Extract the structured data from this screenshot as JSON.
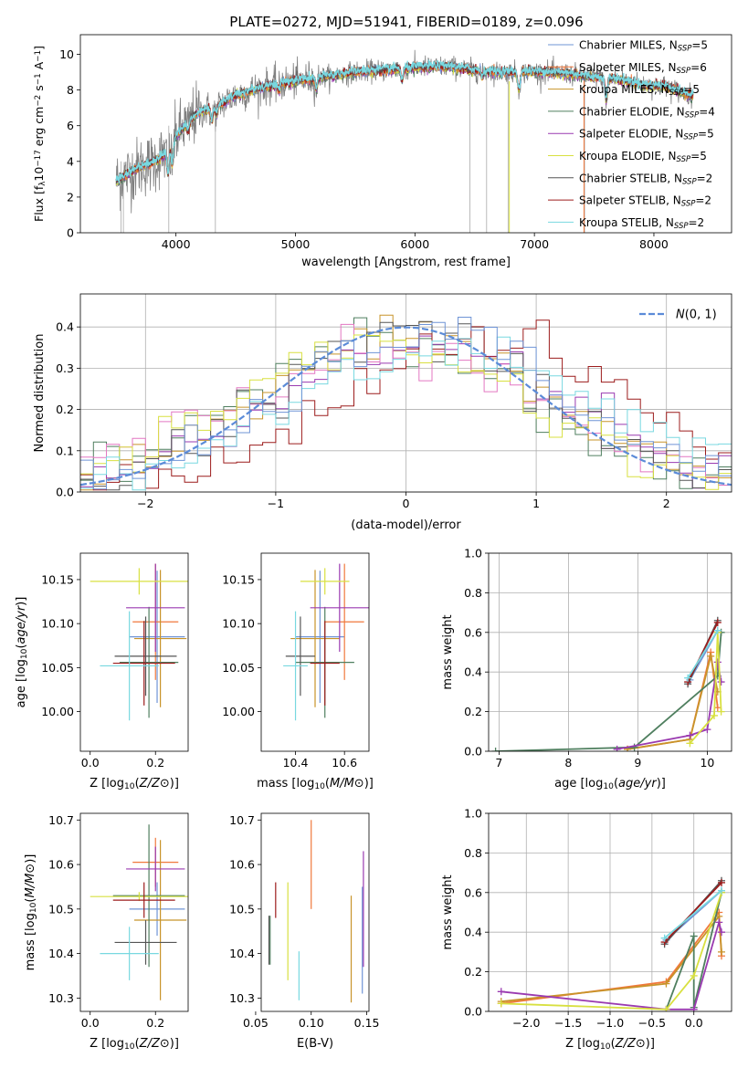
{
  "figure": {
    "title": "PLATE=0272, MJD=51941, FIBERID=0189, z=0.096"
  },
  "colors": {
    "Chabrier MILES": "#6f94d6",
    "Salpeter MILES": "#f0783c",
    "Kroupa MILES": "#c8942a",
    "Chabrier ELODIE": "#4f7f5f",
    "Salpeter ELODIE": "#9a3ab0",
    "Kroupa ELODIE": "#d8e040",
    "Chabrier STELIB": "#555555",
    "Salpeter STELIB": "#9c1c1c",
    "Kroupa STELIB": "#78d8e0",
    "gauss": "#5b8bd8",
    "spectrum": "#808080",
    "pink": "#e377c2",
    "orange": "#d6782c"
  },
  "chart_data": [
    {
      "id": "spectrum",
      "type": "line",
      "xlabel": "wavelength [Angstrom, rest frame]",
      "ylabel_parts": [
        "Flux [f",
        "λ",
        "10",
        "−17",
        " erg cm",
        "−2",
        " s",
        "−1",
        " A",
        "−1",
        "]"
      ],
      "xlim": [
        3200,
        8650
      ],
      "ylim": [
        0,
        11.1
      ],
      "xticks": [
        4000,
        5000,
        6000,
        7000,
        8000
      ],
      "yticks": [
        0,
        2,
        4,
        6,
        8,
        10
      ],
      "legend": [
        "Chabrier MILES, N_SSP=5",
        "Salpeter MILES, N_SSP=6",
        "Kroupa MILES, N_SSP=5",
        "Chabrier ELODIE, N_SSP=4",
        "Salpeter ELODIE, N_SSP=5",
        "Kroupa ELODIE, N_SSP=5",
        "Chabrier STELIB, N_SSP=2",
        "Salpeter STELIB, N_SSP=2",
        "Kroupa STELIB, N_SSP=2"
      ],
      "legend_labels": [
        {
          "name": "Chabrier MILES, N",
          "sub": "SSP",
          "tail": "=5"
        },
        {
          "name": "Salpeter MILES, N",
          "sub": "SSP",
          "tail": "=6"
        },
        {
          "name": "Kroupa MILES, N",
          "sub": "SSP",
          "tail": "=5"
        },
        {
          "name": "Chabrier ELODIE, N",
          "sub": "SSP",
          "tail": "=4"
        },
        {
          "name": "Salpeter ELODIE, N",
          "sub": "SSP",
          "tail": "=5"
        },
        {
          "name": "Kroupa ELODIE, N",
          "sub": "SSP",
          "tail": "=5"
        },
        {
          "name": "Chabrier STELIB, N",
          "sub": "SSP",
          "tail": "=2"
        },
        {
          "name": "Salpeter STELIB, N",
          "sub": "SSP",
          "tail": "=2"
        },
        {
          "name": "Kroupa STELIB, N",
          "sub": "SSP",
          "tail": "=2"
        }
      ],
      "legend_placement": "right",
      "continuum": {
        "x": [
          3500,
          3600,
          3700,
          3800,
          3900,
          4000,
          4100,
          4200,
          4300,
          4400,
          4500,
          4700,
          4900,
          5100,
          5300,
          5500,
          5700,
          5900,
          6100,
          6300,
          6500,
          6700,
          6900,
          7100,
          7300,
          7500,
          7700,
          7900,
          8100,
          8300
        ],
        "y": [
          2.9,
          3.3,
          3.7,
          3.9,
          4.4,
          5.4,
          6.2,
          6.8,
          7.0,
          7.3,
          7.7,
          8.1,
          8.4,
          8.6,
          8.8,
          9.0,
          9.1,
          9.2,
          9.3,
          9.3,
          9.1,
          9.0,
          9.0,
          9.0,
          8.9,
          8.7,
          8.6,
          8.3,
          8.2,
          7.7
        ]
      },
      "notable_features": [
        {
          "x": 3933,
          "depth": 1.4
        },
        {
          "x": 3968,
          "depth": 1.2
        },
        {
          "x": 4102,
          "depth": 0.5
        },
        {
          "x": 4300,
          "depth": 0.7
        },
        {
          "x": 4340,
          "depth": 0.5
        },
        {
          "x": 4861,
          "depth": 0.4
        },
        {
          "x": 5175,
          "depth": 0.6
        },
        {
          "x": 5892,
          "depth": 0.7
        },
        {
          "x": 6563,
          "depth": 0.3
        },
        {
          "x": 6870,
          "depth": 1.0
        },
        {
          "x": 7600,
          "depth": 1.2
        }
      ]
    },
    {
      "id": "residuals",
      "type": "histogram",
      "xlabel": "(data-model)/error",
      "ylabel": "Normed distribution",
      "xlim": [
        -2.5,
        2.5
      ],
      "ylim": [
        0,
        0.48
      ],
      "xticks": [
        -2,
        -1,
        0,
        1,
        2
      ],
      "xtick_labels": [
        "−2",
        "−1",
        "0",
        "1",
        "2"
      ],
      "yticks": [
        0.0,
        0.1,
        0.2,
        0.3,
        0.4
      ],
      "ytick_labels": [
        "0.0",
        "0.1",
        "0.2",
        "0.3",
        "0.4"
      ],
      "grid": true,
      "legend": [
        {
          "math": "N",
          "args": "(0, 1)",
          "style": "dashed"
        }
      ],
      "bin_width": 0.1,
      "n_series": 9
    },
    {
      "id": "age_vs_Z",
      "type": "errorbar",
      "xlabel": "Z [log10(Z/Z⊙)]",
      "ylabel": "age  [log10(age/yr)]",
      "xlim": [
        -0.03,
        0.3
      ],
      "ylim": [
        9.955,
        10.18
      ],
      "xticks": [
        0.0,
        0.2
      ],
      "xtick_labels": [
        "0.0",
        "0.2"
      ],
      "yticks": [
        10.0,
        10.05,
        10.1,
        10.15
      ],
      "ytick_labels": [
        "10.00",
        "10.05",
        "10.10",
        "10.15"
      ],
      "points": [
        {
          "x": 0.205,
          "xe": 0.085,
          "y": 10.085,
          "ye": 0.075,
          "s": "Chabrier MILES"
        },
        {
          "x": 0.2,
          "xe": 0.07,
          "y": 10.102,
          "ye": 0.066,
          "s": "Salpeter MILES"
        },
        {
          "x": 0.215,
          "xe": 0.08,
          "y": 10.083,
          "ye": 0.078,
          "s": "Kroupa MILES"
        },
        {
          "x": 0.18,
          "xe": 0.09,
          "y": 10.056,
          "ye": 0.063,
          "s": "Chabrier ELODIE"
        },
        {
          "x": 0.2,
          "xe": 0.09,
          "y": 10.118,
          "ye": 0.05,
          "s": "Salpeter ELODIE"
        },
        {
          "x": 0.15,
          "xe": 0.15,
          "y": 10.148,
          "ye": 0.015,
          "s": "Kroupa ELODIE"
        },
        {
          "x": 0.17,
          "xe": 0.095,
          "y": 10.063,
          "ye": 0.045,
          "s": "Chabrier STELIB"
        },
        {
          "x": 0.165,
          "xe": 0.095,
          "y": 10.055,
          "ye": 0.048,
          "s": "Salpeter STELIB"
        },
        {
          "x": 0.12,
          "xe": 0.09,
          "y": 10.052,
          "ye": 0.062,
          "s": "Kroupa STELIB"
        }
      ]
    },
    {
      "id": "age_vs_mass",
      "type": "errorbar",
      "xlabel": "mass [log10(M/M⊙)]",
      "xlim": [
        10.26,
        10.7
      ],
      "ylim": [
        9.955,
        10.18
      ],
      "xticks": [
        10.4,
        10.6
      ],
      "xtick_labels": [
        "10.4",
        "10.6"
      ],
      "yticks": [
        10.0,
        10.05,
        10.1,
        10.15
      ],
      "ytick_labels": [
        "10.00",
        "10.05",
        "10.10",
        "10.15"
      ],
      "points": [
        {
          "x": 10.5,
          "xe": 0.1,
          "y": 10.085,
          "ye": 0.075,
          "s": "Chabrier MILES"
        },
        {
          "x": 10.6,
          "xe": 0.08,
          "y": 10.102,
          "ye": 0.066,
          "s": "Salpeter MILES"
        },
        {
          "x": 10.48,
          "xe": 0.1,
          "y": 10.083,
          "ye": 0.078,
          "s": "Kroupa MILES"
        },
        {
          "x": 10.52,
          "xe": 0.12,
          "y": 10.056,
          "ye": 0.063,
          "s": "Chabrier ELODIE"
        },
        {
          "x": 10.58,
          "xe": 0.12,
          "y": 10.118,
          "ye": 0.05,
          "s": "Salpeter ELODIE"
        },
        {
          "x": 10.52,
          "xe": 0.1,
          "y": 10.148,
          "ye": 0.015,
          "s": "Kroupa ELODIE"
        },
        {
          "x": 10.42,
          "xe": 0.06,
          "y": 10.063,
          "ye": 0.045,
          "s": "Chabrier STELIB"
        },
        {
          "x": 10.52,
          "xe": 0.06,
          "y": 10.055,
          "ye": 0.048,
          "s": "Salpeter STELIB"
        },
        {
          "x": 10.4,
          "xe": 0.05,
          "y": 10.052,
          "ye": 0.062,
          "s": "Kroupa STELIB"
        }
      ]
    },
    {
      "id": "mass_vs_Z",
      "type": "errorbar",
      "xlabel": "Z [log10(Z/Z⊙)]",
      "ylabel": "mass [log10(M/M⊙)]",
      "xlim": [
        -0.03,
        0.3
      ],
      "ylim": [
        10.27,
        10.715
      ],
      "xticks": [
        0.0,
        0.2
      ],
      "xtick_labels": [
        "0.0",
        "0.2"
      ],
      "yticks": [
        10.3,
        10.4,
        10.5,
        10.6,
        10.7
      ],
      "ytick_labels": [
        "10.3",
        "10.4",
        "10.5",
        "10.6",
        "10.7"
      ],
      "points": [
        {
          "x": 0.205,
          "xe": 0.085,
          "y": 10.5,
          "ye": 0.06,
          "s": "Chabrier MILES"
        },
        {
          "x": 0.2,
          "xe": 0.07,
          "y": 10.605,
          "ye": 0.055,
          "s": "Salpeter MILES"
        },
        {
          "x": 0.215,
          "xe": 0.08,
          "y": 10.475,
          "ye": 0.18,
          "s": "Kroupa MILES"
        },
        {
          "x": 0.18,
          "xe": 0.11,
          "y": 10.53,
          "ye": 0.16,
          "s": "Chabrier ELODIE"
        },
        {
          "x": 0.2,
          "xe": 0.09,
          "y": 10.59,
          "ye": 0.05,
          "s": "Salpeter ELODIE"
        },
        {
          "x": 0.15,
          "xe": 0.15,
          "y": 10.528,
          "ye": 0.01,
          "s": "Kroupa ELODIE"
        },
        {
          "x": 0.17,
          "xe": 0.095,
          "y": 10.425,
          "ye": 0.05,
          "s": "Chabrier STELIB"
        },
        {
          "x": 0.165,
          "xe": 0.095,
          "y": 10.52,
          "ye": 0.04,
          "s": "Salpeter STELIB"
        },
        {
          "x": 0.12,
          "xe": 0.09,
          "y": 10.4,
          "ye": 0.06,
          "s": "Kroupa STELIB"
        }
      ]
    },
    {
      "id": "mass_vs_ebv",
      "type": "errorbar",
      "xlabel": "E(B-V)",
      "xlim": [
        0.055,
        0.152
      ],
      "ylim": [
        10.27,
        10.715
      ],
      "xticks": [
        0.05,
        0.1,
        0.15
      ],
      "xtick_labels": [
        "0.05",
        "0.10",
        "0.15"
      ],
      "yticks": [
        10.3,
        10.4,
        10.5,
        10.6,
        10.7
      ],
      "ytick_labels": [
        "10.3",
        "10.4",
        "10.5",
        "10.6",
        "10.7"
      ],
      "points": [
        {
          "x": 0.146,
          "y": 10.43,
          "ye": 0.12,
          "s": "Chabrier MILES"
        },
        {
          "x": 0.1,
          "y": 10.6,
          "ye": 0.1,
          "s": "Salpeter MILES"
        },
        {
          "x": 0.136,
          "y": 10.41,
          "ye": 0.12,
          "s": "Kroupa MILES"
        },
        {
          "x": 0.063,
          "y": 10.43,
          "ye": 0.055,
          "s": "Chabrier ELODIE"
        },
        {
          "x": 0.147,
          "y": 10.5,
          "ye": 0.13,
          "s": "Salpeter ELODIE"
        },
        {
          "x": 0.079,
          "y": 10.45,
          "ye": 0.11,
          "s": "Kroupa ELODIE"
        },
        {
          "x": 0.062,
          "y": 10.43,
          "ye": 0.055,
          "s": "Chabrier STELIB"
        },
        {
          "x": 0.068,
          "y": 10.52,
          "ye": 0.04,
          "s": "Salpeter STELIB"
        },
        {
          "x": 0.089,
          "y": 10.35,
          "ye": 0.055,
          "s": "Kroupa STELIB"
        }
      ]
    },
    {
      "id": "weight_vs_age",
      "type": "line",
      "xlabel": "age  [log10(age/yr)]",
      "ylabel": "mass weight",
      "xlim": [
        6.85,
        10.35
      ],
      "ylim": [
        0,
        1.0
      ],
      "xticks": [
        7,
        8,
        9,
        10
      ],
      "xtick_labels": [
        "7",
        "8",
        "9",
        "10"
      ],
      "yticks": [
        0,
        0.2,
        0.4,
        0.6,
        0.8,
        1.0
      ],
      "ytick_labels": [
        "0.0",
        "0.2",
        "0.4",
        "0.6",
        "0.8",
        "1.0"
      ],
      "grid": true,
      "series": [
        {
          "s": "Chabrier MILES",
          "x": [
            9.75,
            10.15
          ],
          "y": [
            0.36,
            0.61
          ]
        },
        {
          "s": "Salpeter MILES",
          "x": [
            8.85,
            9.75,
            10.05,
            10.15
          ],
          "y": [
            0.01,
            0.06,
            0.5,
            0.22
          ]
        },
        {
          "s": "Kroupa MILES",
          "x": [
            8.85,
            9.75,
            10.05,
            10.15
          ],
          "y": [
            0.01,
            0.06,
            0.48,
            0.3
          ]
        },
        {
          "s": "Chabrier ELODIE",
          "x": [
            6.95,
            8.95,
            10.15,
            10.2
          ],
          "y": [
            0.0,
            0.02,
            0.38,
            0.6
          ]
        },
        {
          "s": "Salpeter ELODIE",
          "x": [
            8.7,
            9.75,
            10.0,
            10.15,
            10.2
          ],
          "y": [
            0.01,
            0.08,
            0.11,
            0.45,
            0.35
          ]
        },
        {
          "s": "Kroupa ELODIE",
          "x": [
            9.75,
            10.1,
            10.15,
            10.2
          ],
          "y": [
            0.04,
            0.18,
            0.6,
            0.2
          ]
        },
        {
          "s": "Chabrier STELIB",
          "x": [
            9.72,
            10.15
          ],
          "y": [
            0.34,
            0.66
          ]
        },
        {
          "s": "Salpeter STELIB",
          "x": [
            9.72,
            10.15
          ],
          "y": [
            0.35,
            0.65
          ]
        },
        {
          "s": "Kroupa STELIB",
          "x": [
            9.72,
            10.15
          ],
          "y": [
            0.37,
            0.61
          ]
        }
      ]
    },
    {
      "id": "weight_vs_Z",
      "type": "line",
      "xlabel": "Z [log10(Z/Z⊙)]",
      "ylabel": "mass weight",
      "xlim": [
        -2.45,
        0.45
      ],
      "ylim": [
        0,
        1.0
      ],
      "xticks": [
        -2.0,
        -1.5,
        -1.0,
        -0.5,
        0.0
      ],
      "xtick_labels": [
        "−2.0",
        "−1.5",
        "−1.0",
        "−0.5",
        "0.0"
      ],
      "yticks": [
        0,
        0.2,
        0.4,
        0.6,
        0.8,
        1.0
      ],
      "ytick_labels": [
        "0.0",
        "0.2",
        "0.4",
        "0.6",
        "0.8",
        "1.0"
      ],
      "grid": true,
      "series": [
        {
          "s": "Chabrier MILES",
          "x": [
            -0.33,
            0.33
          ],
          "y": [
            0.36,
            0.61
          ]
        },
        {
          "s": "Salpeter MILES",
          "x": [
            -2.3,
            -0.33,
            0.3,
            0.33
          ],
          "y": [
            0.04,
            0.15,
            0.5,
            0.28
          ]
        },
        {
          "s": "Kroupa MILES",
          "x": [
            -2.3,
            -0.33,
            0.3,
            0.33
          ],
          "y": [
            0.05,
            0.14,
            0.48,
            0.3
          ]
        },
        {
          "s": "Chabrier ELODIE",
          "x": [
            -0.33,
            0.0,
            0.0,
            0.33
          ],
          "y": [
            0.01,
            0.38,
            0.02,
            0.6
          ]
        },
        {
          "s": "Salpeter ELODIE",
          "x": [
            -2.3,
            -0.33,
            0.0,
            0.3,
            0.33
          ],
          "y": [
            0.1,
            0.01,
            0.01,
            0.45,
            0.4
          ]
        },
        {
          "s": "Kroupa ELODIE",
          "x": [
            -2.3,
            -0.33,
            0.0,
            0.33
          ],
          "y": [
            0.04,
            0.01,
            0.18,
            0.6
          ]
        },
        {
          "s": "Chabrier STELIB",
          "x": [
            -0.35,
            0.33
          ],
          "y": [
            0.34,
            0.66
          ]
        },
        {
          "s": "Salpeter STELIB",
          "x": [
            -0.35,
            0.33
          ],
          "y": [
            0.35,
            0.65
          ]
        },
        {
          "s": "Kroupa STELIB",
          "x": [
            -0.35,
            0.33
          ],
          "y": [
            0.37,
            0.61
          ]
        }
      ]
    }
  ]
}
